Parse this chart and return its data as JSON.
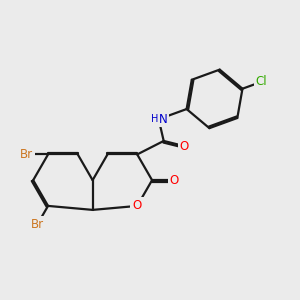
{
  "bg_color": "#ebebeb",
  "bond_color": "#1a1a1a",
  "bond_lw": 1.6,
  "dbo": 0.055,
  "atom_colors": {
    "Br": "#cc7722",
    "O": "#ff0000",
    "N": "#0000cc",
    "Cl": "#33aa00"
  },
  "fs": 8.5,
  "fsh": 7.0,
  "bl": 1.0
}
